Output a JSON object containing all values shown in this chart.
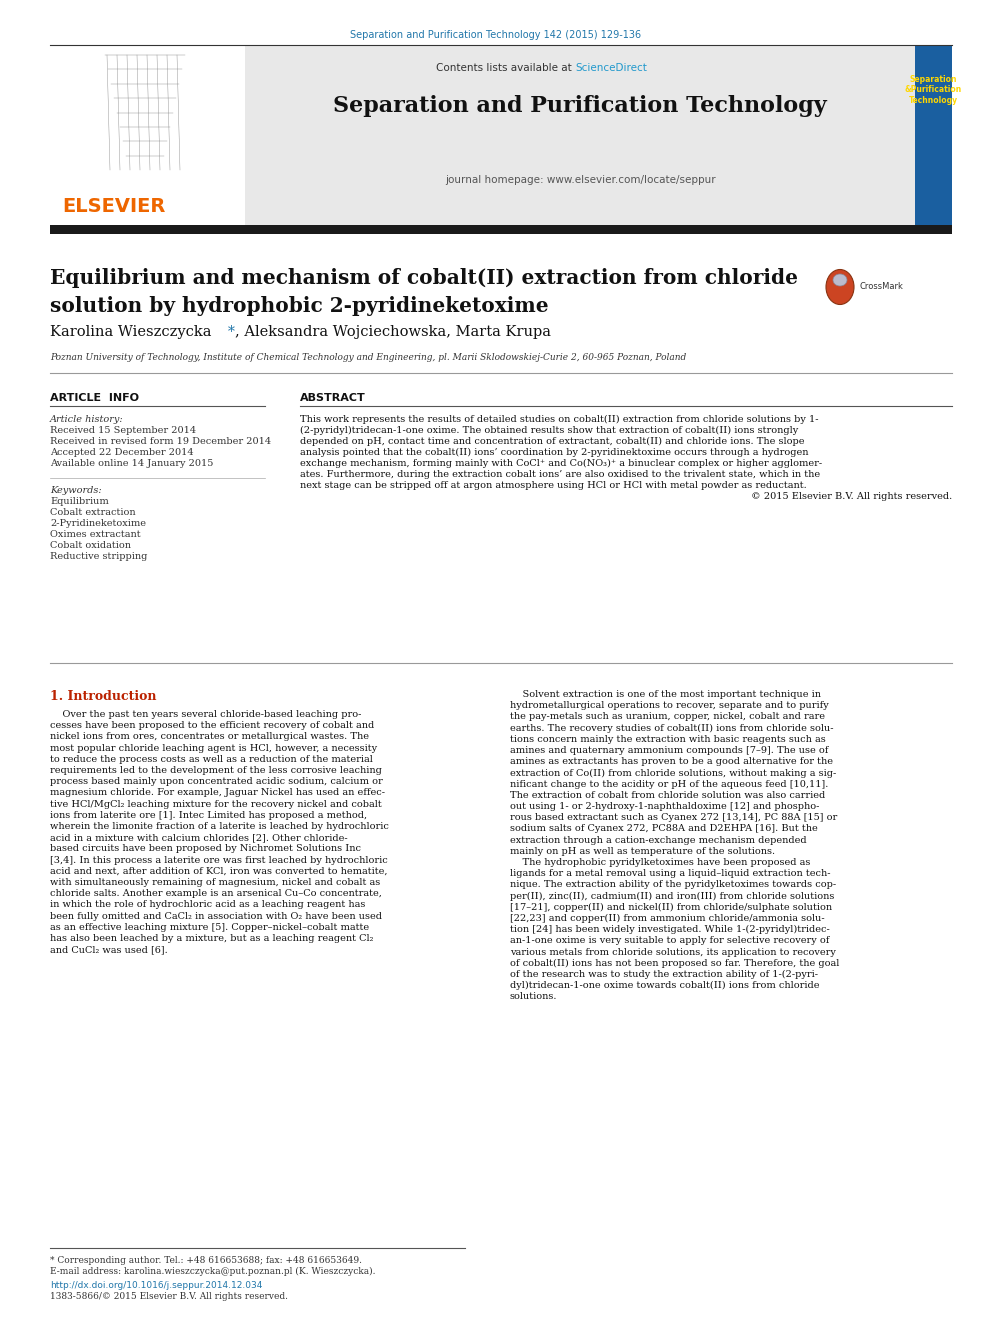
{
  "journal_ref": "Separation and Purification Technology 142 (2015) 129-136",
  "journal_name": "Separation and Purification Technology",
  "journal_homepage": "journal homepage: www.elsevier.com/locate/seppur",
  "contents_line": "Contents lists available at ",
  "sciencedirect": "ScienceDirect",
  "title_line1": "Equilibrium and mechanism of cobalt(II) extraction from chloride",
  "title_line2": "solution by hydrophobic 2-pyridineketoxime",
  "authors": "Karolina Wieszczycka",
  "authors2": ", Aleksandra Wojciechowska, Marta Krupa",
  "affiliation": "Poznan University of Technology, Institute of Chemical Technology and Engineering, pl. Marii Sklodowskiej-Curie 2, 60-965 Poznan, Poland",
  "article_info_header": "ARTICLE  INFO",
  "article_history_label": "Article history:",
  "received": "Received 15 September 2014",
  "received_revised": "Received in revised form 19 December 2014",
  "accepted": "Accepted 22 December 2014",
  "available_online": "Available online 14 January 2015",
  "keywords_label": "Keywords:",
  "keywords": [
    "Equilibrium",
    "Cobalt extraction",
    "2-Pyridineketoxime",
    "Oximes extractant",
    "Cobalt oxidation",
    "Reductive stripping"
  ],
  "abstract_header": "ABSTRACT",
  "abstract_lines": [
    "This work represents the results of detailed studies on cobalt(II) extraction from chloride solutions by 1-",
    "(2-pyridyl)tridecan-1-one oxime. The obtained results show that extraction of cobalt(II) ions strongly",
    "depended on pH, contact time and concentration of extractant, cobalt(II) and chloride ions. The slope",
    "analysis pointed that the cobalt(II) ions’ coordination by 2-pyridinektoxime occurs through a hydrogen",
    "exchange mechanism, forming mainly with CoCl⁺ and Co(NO₃)⁺ a binuclear complex or higher agglomer-",
    "ates. Furthermore, during the extraction cobalt ions’ are also oxidised to the trivalent state, which in the",
    "next stage can be stripped off at argon atmosphere using HCl or HCl with metal powder as reductant.",
    "© 2015 Elsevier B.V. All rights reserved."
  ],
  "intro_header": "1. Introduction",
  "intro_left_lines": [
    "    Over the past ten years several chloride-based leaching pro-",
    "cesses have been proposed to the efficient recovery of cobalt and",
    "nickel ions from ores, concentrates or metallurgical wastes. The",
    "most popular chloride leaching agent is HCl, however, a necessity",
    "to reduce the process costs as well as a reduction of the material",
    "requirements led to the development of the less corrosive leaching",
    "process based mainly upon concentrated acidic sodium, calcium or",
    "magnesium chloride. For example, Jaguar Nickel has used an effec-",
    "tive HCl/MgCl₂ leaching mixture for the recovery nickel and cobalt",
    "ions from laterite ore [1]. Intec Limited has proposed a method,",
    "wherein the limonite fraction of a laterite is leached by hydrochloric",
    "acid in a mixture with calcium chlorides [2]. Other chloride-",
    "based circuits have been proposed by Nichromet Solutions Inc",
    "[3,4]. In this process a laterite ore was first leached by hydrochloric",
    "acid and next, after addition of KCl, iron was converted to hematite,",
    "with simultaneously remaining of magnesium, nickel and cobalt as",
    "chloride salts. Another example is an arsenical Cu–Co concentrate,",
    "in which the role of hydrochloric acid as a leaching reagent has",
    "been fully omitted and CaCl₂ in association with O₂ have been used",
    "as an effective leaching mixture [5]. Copper–nickel–cobalt matte",
    "has also been leached by a mixture, but as a leaching reagent Cl₂",
    "and CuCl₂ was used [6]."
  ],
  "intro_right_lines": [
    "    Solvent extraction is one of the most important technique in",
    "hydrometallurgical operations to recover, separate and to purify",
    "the pay-metals such as uranium, copper, nickel, cobalt and rare",
    "earths. The recovery studies of cobalt(II) ions from chloride solu-",
    "tions concern mainly the extraction with basic reagents such as",
    "amines and quaternary ammonium compounds [7–9]. The use of",
    "amines as extractants has proven to be a good alternative for the",
    "extraction of Co(II) from chloride solutions, without making a sig-",
    "nificant change to the acidity or pH of the aqueous feed [10,11].",
    "The extraction of cobalt from chloride solution was also carried",
    "out using 1- or 2-hydroxy-1-naphthaldoxime [12] and phospho-",
    "rous based extractant such as Cyanex 272 [13,14], PC 88A [15] or",
    "sodium salts of Cyanex 272, PC88A and D2EHPA [16]. But the",
    "extraction through a cation-exchange mechanism depended",
    "mainly on pH as well as temperature of the solutions.",
    "    The hydrophobic pyridylketoximes have been proposed as",
    "ligands for a metal removal using a liquid–liquid extraction tech-",
    "nique. The extraction ability of the pyridylketoximes towards cop-",
    "per(II), zinc(II), cadmium(II) and iron(III) from chloride solutions",
    "[17–21], copper(II) and nickel(II) from chloride/sulphate solution",
    "[22,23] and copper(II) from ammonium chloride/ammonia solu-",
    "tion [24] has been widely investigated. While 1-(2-pyridyl)tridec-",
    "an-1-one oxime is very suitable to apply for selective recovery of",
    "various metals from chloride solutions, its application to recovery",
    "of cobalt(II) ions has not been proposed so far. Therefore, the goal",
    "of the research was to study the extraction ability of 1-(2-pyri-",
    "dyl)tridecan-1-one oxime towards cobalt(II) ions from chloride",
    "solutions."
  ],
  "footnote_star": "* Corresponding author. Tel.: +48 616653688; fax: +48 616653649.",
  "footnote_email": "E-mail address: karolina.wieszczycka@put.poznan.pl (K. Wieszczycka).",
  "doi": "http://dx.doi.org/10.1016/j.seppur.2014.12.034",
  "issn": "1383-5866/© 2015 Elsevier B.V. All rights reserved.",
  "header_bg": "#e8e8e8",
  "journal_title_color": "#2277aa",
  "sciencedirect_color": "#2299cc",
  "elsevier_color": "#ee6600",
  "section_header_color": "#bb2200",
  "link_color": "#2277aa",
  "cover_bg": "#1a5fa0",
  "body_bg": "#ffffff",
  "text_color": "#111111",
  "gray_text": "#444444"
}
